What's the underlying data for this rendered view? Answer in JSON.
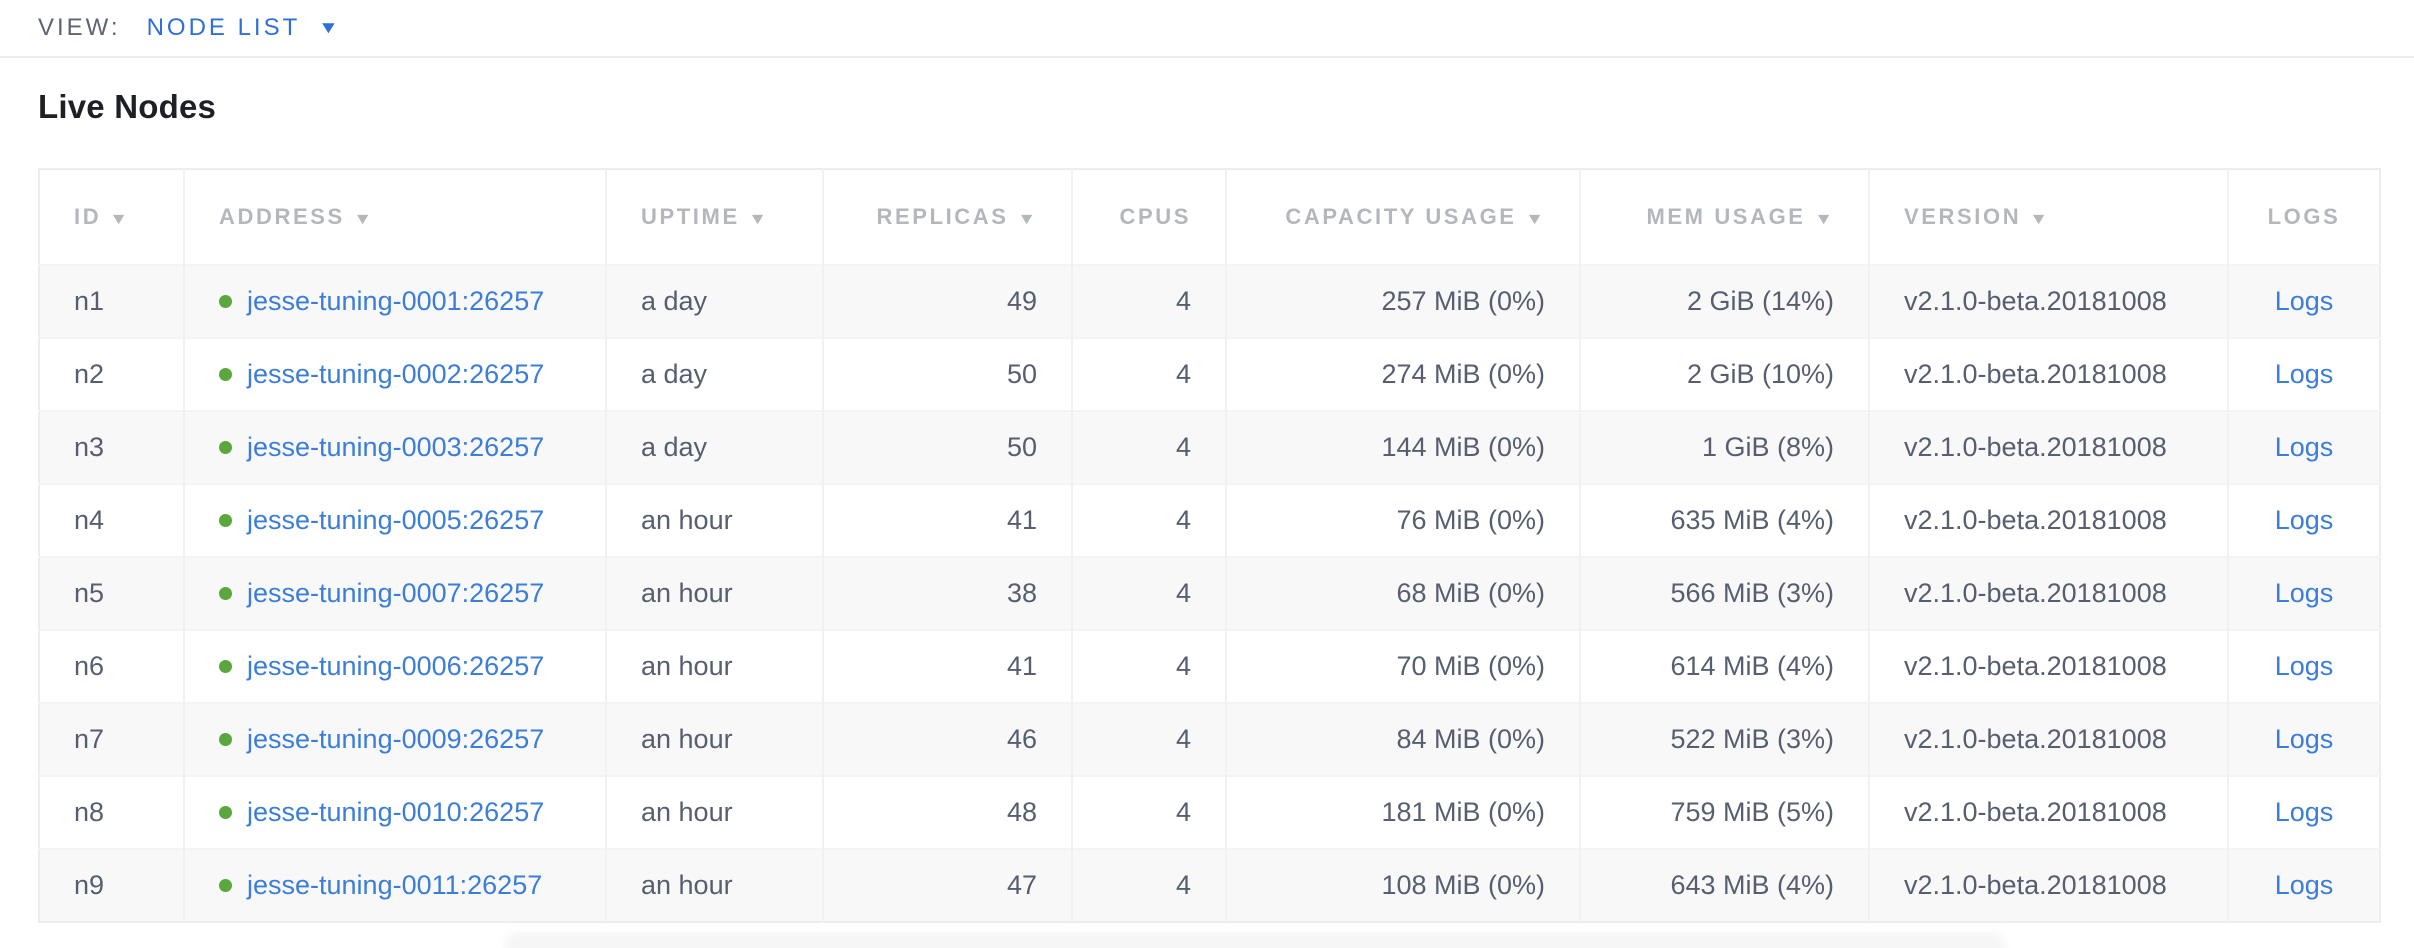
{
  "view_bar": {
    "label": "VIEW:",
    "selected": "NODE LIST",
    "caret_icon": "▼"
  },
  "page": {
    "title": "Live Nodes"
  },
  "table": {
    "columns": [
      {
        "key": "id",
        "label": "ID",
        "sortable": true,
        "align": "left"
      },
      {
        "key": "address",
        "label": "ADDRESS",
        "sortable": true,
        "align": "left"
      },
      {
        "key": "uptime",
        "label": "UPTIME",
        "sortable": true,
        "align": "left"
      },
      {
        "key": "replicas",
        "label": "REPLICAS",
        "sortable": true,
        "align": "right"
      },
      {
        "key": "cpus",
        "label": "CPUS",
        "sortable": false,
        "align": "right"
      },
      {
        "key": "capacity",
        "label": "CAPACITY USAGE",
        "sortable": true,
        "align": "right"
      },
      {
        "key": "mem",
        "label": "MEM USAGE",
        "sortable": true,
        "align": "right"
      },
      {
        "key": "version",
        "label": "VERSION",
        "sortable": true,
        "align": "left"
      },
      {
        "key": "logs",
        "label": "LOGS",
        "sortable": false,
        "align": "center"
      }
    ],
    "sort_arrow_icon": "▼",
    "rows": [
      {
        "id": "n1",
        "address": "jesse-tuning-0001:26257",
        "uptime": "a day",
        "replicas": "49",
        "cpus": "4",
        "capacity": "257 MiB (0%)",
        "mem": "2 GiB (14%)",
        "version": "v2.1.0-beta.20181008",
        "logs": "Logs",
        "status": "live"
      },
      {
        "id": "n2",
        "address": "jesse-tuning-0002:26257",
        "uptime": "a day",
        "replicas": "50",
        "cpus": "4",
        "capacity": "274 MiB (0%)",
        "mem": "2 GiB (10%)",
        "version": "v2.1.0-beta.20181008",
        "logs": "Logs",
        "status": "live"
      },
      {
        "id": "n3",
        "address": "jesse-tuning-0003:26257",
        "uptime": "a day",
        "replicas": "50",
        "cpus": "4",
        "capacity": "144 MiB (0%)",
        "mem": "1 GiB (8%)",
        "version": "v2.1.0-beta.20181008",
        "logs": "Logs",
        "status": "live"
      },
      {
        "id": "n4",
        "address": "jesse-tuning-0005:26257",
        "uptime": "an hour",
        "replicas": "41",
        "cpus": "4",
        "capacity": "76 MiB (0%)",
        "mem": "635 MiB (4%)",
        "version": "v2.1.0-beta.20181008",
        "logs": "Logs",
        "status": "live"
      },
      {
        "id": "n5",
        "address": "jesse-tuning-0007:26257",
        "uptime": "an hour",
        "replicas": "38",
        "cpus": "4",
        "capacity": "68 MiB (0%)",
        "mem": "566 MiB (3%)",
        "version": "v2.1.0-beta.20181008",
        "logs": "Logs",
        "status": "live"
      },
      {
        "id": "n6",
        "address": "jesse-tuning-0006:26257",
        "uptime": "an hour",
        "replicas": "41",
        "cpus": "4",
        "capacity": "70 MiB (0%)",
        "mem": "614 MiB (4%)",
        "version": "v2.1.0-beta.20181008",
        "logs": "Logs",
        "status": "live"
      },
      {
        "id": "n7",
        "address": "jesse-tuning-0009:26257",
        "uptime": "an hour",
        "replicas": "46",
        "cpus": "4",
        "capacity": "84 MiB (0%)",
        "mem": "522 MiB (3%)",
        "version": "v2.1.0-beta.20181008",
        "logs": "Logs",
        "status": "live"
      },
      {
        "id": "n8",
        "address": "jesse-tuning-0010:26257",
        "uptime": "an hour",
        "replicas": "48",
        "cpus": "4",
        "capacity": "181 MiB (0%)",
        "mem": "759 MiB (5%)",
        "version": "v2.1.0-beta.20181008",
        "logs": "Logs",
        "status": "live"
      },
      {
        "id": "n9",
        "address": "jesse-tuning-0011:26257",
        "uptime": "an hour",
        "replicas": "47",
        "cpus": "4",
        "capacity": "108 MiB (0%)",
        "mem": "643 MiB (4%)",
        "version": "v2.1.0-beta.20181008",
        "logs": "Logs",
        "status": "live"
      }
    ]
  },
  "colors": {
    "link": "#3b7dd8",
    "view-blue": "#2f6fd9",
    "status-green": "#5aa73c",
    "header-gray": "#b4b7bc",
    "text": "#565e70",
    "title": "#1d2026"
  }
}
